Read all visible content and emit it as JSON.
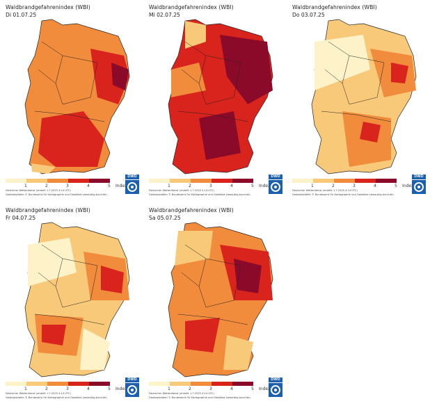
{
  "panels": [
    {
      "title": "Waldbrandgefahrenindex (WBI)",
      "date": "Di 01.07.25"
    },
    {
      "title": "Waldbrandgefahrenindex (WBI)",
      "date": "Mi 02.07.25"
    },
    {
      "title": "Waldbrandgefahrenindex (WBI)",
      "date": "Do 03.07.25"
    },
    {
      "title": "Waldbrandgefahrenindex (WBI)",
      "date": "Fr 04.07.25"
    },
    {
      "title": "Waldbrandgefahrenindex (WBI)",
      "date": "Sa 05.07.25"
    }
  ],
  "legend": {
    "ticks": [
      "1",
      "2",
      "3",
      "4",
      "5"
    ],
    "index_label": "Index",
    "colors": [
      "#fdf2c8",
      "#f9c97a",
      "#f08c3c",
      "#d9241e",
      "#8b0a2a"
    ]
  },
  "credits": {
    "line1": "Deutscher Wetterdienst (erstellt 1.7.2025 4:14 UTC)",
    "line2": "Geobasisdaten © Bundesamt für Kartographie und Geodäsie (www.bkg.bund.de)"
  },
  "logo": {
    "text": "DWD",
    "color": "#1b5fae"
  }
}
